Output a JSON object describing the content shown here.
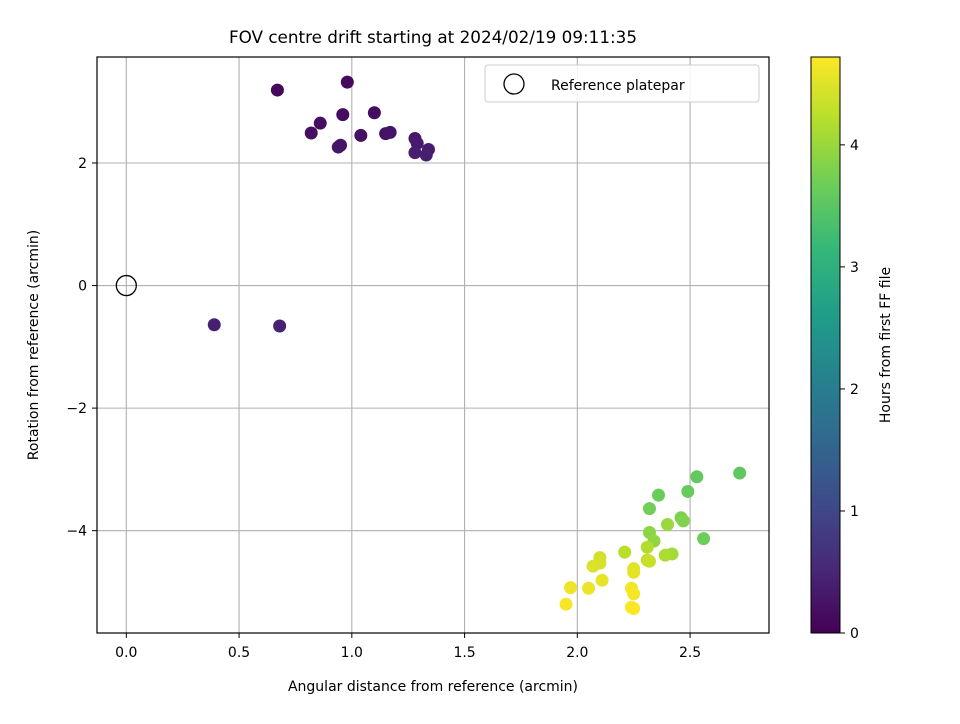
{
  "chart_data": {
    "type": "scatter",
    "title": "FOV centre drift starting at 2024/02/19 09:11:35",
    "xlabel": "Angular distance from reference (arcmin)",
    "ylabel": "Rotation from reference (arcmin)",
    "xlim": [
      -0.13,
      2.85
    ],
    "ylim": [
      -5.67,
      3.73
    ],
    "xticks": [
      0.0,
      0.5,
      1.0,
      1.5,
      2.0,
      2.5
    ],
    "xtick_labels": [
      "0.0",
      "0.5",
      "1.0",
      "1.5",
      "2.0",
      "2.5"
    ],
    "yticks": [
      -4,
      -2,
      0,
      2
    ],
    "ytick_labels": [
      "−4",
      "−2",
      "0",
      "2"
    ],
    "grid": true,
    "legend": {
      "placement": "top-right",
      "entries": [
        {
          "label": "Reference platepar",
          "marker": "open-circle"
        }
      ]
    },
    "reference_point": {
      "x": 0.0,
      "y": 0.0
    },
    "colormap": "viridis",
    "colorbar": {
      "label": "Hours from first FF file",
      "min": 0.0,
      "max": 4.72,
      "ticks": [
        0,
        1,
        2,
        3,
        4
      ],
      "tick_labels": [
        "0",
        "1",
        "2",
        "3",
        "4"
      ]
    },
    "series": [
      {
        "points": [
          {
            "x": 0.67,
            "y": 3.19,
            "c": 0.1
          },
          {
            "x": 0.98,
            "y": 3.32,
            "c": 0.12
          },
          {
            "x": 0.96,
            "y": 2.79,
            "c": 0.14
          },
          {
            "x": 1.1,
            "y": 2.82,
            "c": 0.16
          },
          {
            "x": 0.86,
            "y": 2.65,
            "c": 0.18
          },
          {
            "x": 0.82,
            "y": 2.49,
            "c": 0.2
          },
          {
            "x": 1.04,
            "y": 2.45,
            "c": 0.22
          },
          {
            "x": 1.15,
            "y": 2.48,
            "c": 0.24
          },
          {
            "x": 1.17,
            "y": 2.5,
            "c": 0.26
          },
          {
            "x": 0.95,
            "y": 2.29,
            "c": 0.28
          },
          {
            "x": 0.94,
            "y": 2.26,
            "c": 0.3
          },
          {
            "x": 1.28,
            "y": 2.4,
            "c": 0.32
          },
          {
            "x": 1.29,
            "y": 2.32,
            "c": 0.34
          },
          {
            "x": 1.34,
            "y": 2.22,
            "c": 0.36
          },
          {
            "x": 1.28,
            "y": 2.17,
            "c": 0.38
          },
          {
            "x": 1.33,
            "y": 2.13,
            "c": 0.4
          },
          {
            "x": 0.39,
            "y": -0.64,
            "c": 0.42
          },
          {
            "x": 0.68,
            "y": -0.66,
            "c": 0.44
          },
          {
            "x": 2.72,
            "y": -3.06,
            "c": 3.55
          },
          {
            "x": 2.53,
            "y": -3.12,
            "c": 3.58
          },
          {
            "x": 2.49,
            "y": -3.36,
            "c": 3.61
          },
          {
            "x": 2.36,
            "y": -3.42,
            "c": 3.64
          },
          {
            "x": 2.56,
            "y": -4.13,
            "c": 3.67
          },
          {
            "x": 2.32,
            "y": -3.64,
            "c": 3.7
          },
          {
            "x": 2.46,
            "y": -3.79,
            "c": 3.76
          },
          {
            "x": 2.47,
            "y": -3.84,
            "c": 3.82
          },
          {
            "x": 2.32,
            "y": -4.03,
            "c": 3.88
          },
          {
            "x": 2.34,
            "y": -4.17,
            "c": 3.94
          },
          {
            "x": 2.4,
            "y": -3.9,
            "c": 4.0
          },
          {
            "x": 2.42,
            "y": -4.38,
            "c": 4.06
          },
          {
            "x": 2.39,
            "y": -4.4,
            "c": 4.12
          },
          {
            "x": 2.31,
            "y": -4.27,
            "c": 4.18
          },
          {
            "x": 2.21,
            "y": -4.35,
            "c": 4.24
          },
          {
            "x": 2.31,
            "y": -4.48,
            "c": 4.29
          },
          {
            "x": 2.32,
            "y": -4.5,
            "c": 4.34
          },
          {
            "x": 2.1,
            "y": -4.44,
            "c": 4.39
          },
          {
            "x": 2.1,
            "y": -4.53,
            "c": 4.43
          },
          {
            "x": 2.07,
            "y": -4.58,
            "c": 4.47
          },
          {
            "x": 2.25,
            "y": -4.62,
            "c": 4.51
          },
          {
            "x": 2.25,
            "y": -4.68,
            "c": 4.54
          },
          {
            "x": 2.11,
            "y": -4.81,
            "c": 4.57
          },
          {
            "x": 2.05,
            "y": -4.94,
            "c": 4.6
          },
          {
            "x": 1.97,
            "y": -4.93,
            "c": 4.62
          },
          {
            "x": 2.24,
            "y": -4.94,
            "c": 4.64
          },
          {
            "x": 2.25,
            "y": -5.03,
            "c": 4.66
          },
          {
            "x": 1.95,
            "y": -5.2,
            "c": 4.68
          },
          {
            "x": 2.24,
            "y": -5.25,
            "c": 4.7
          },
          {
            "x": 2.25,
            "y": -5.27,
            "c": 4.72
          }
        ]
      }
    ]
  }
}
